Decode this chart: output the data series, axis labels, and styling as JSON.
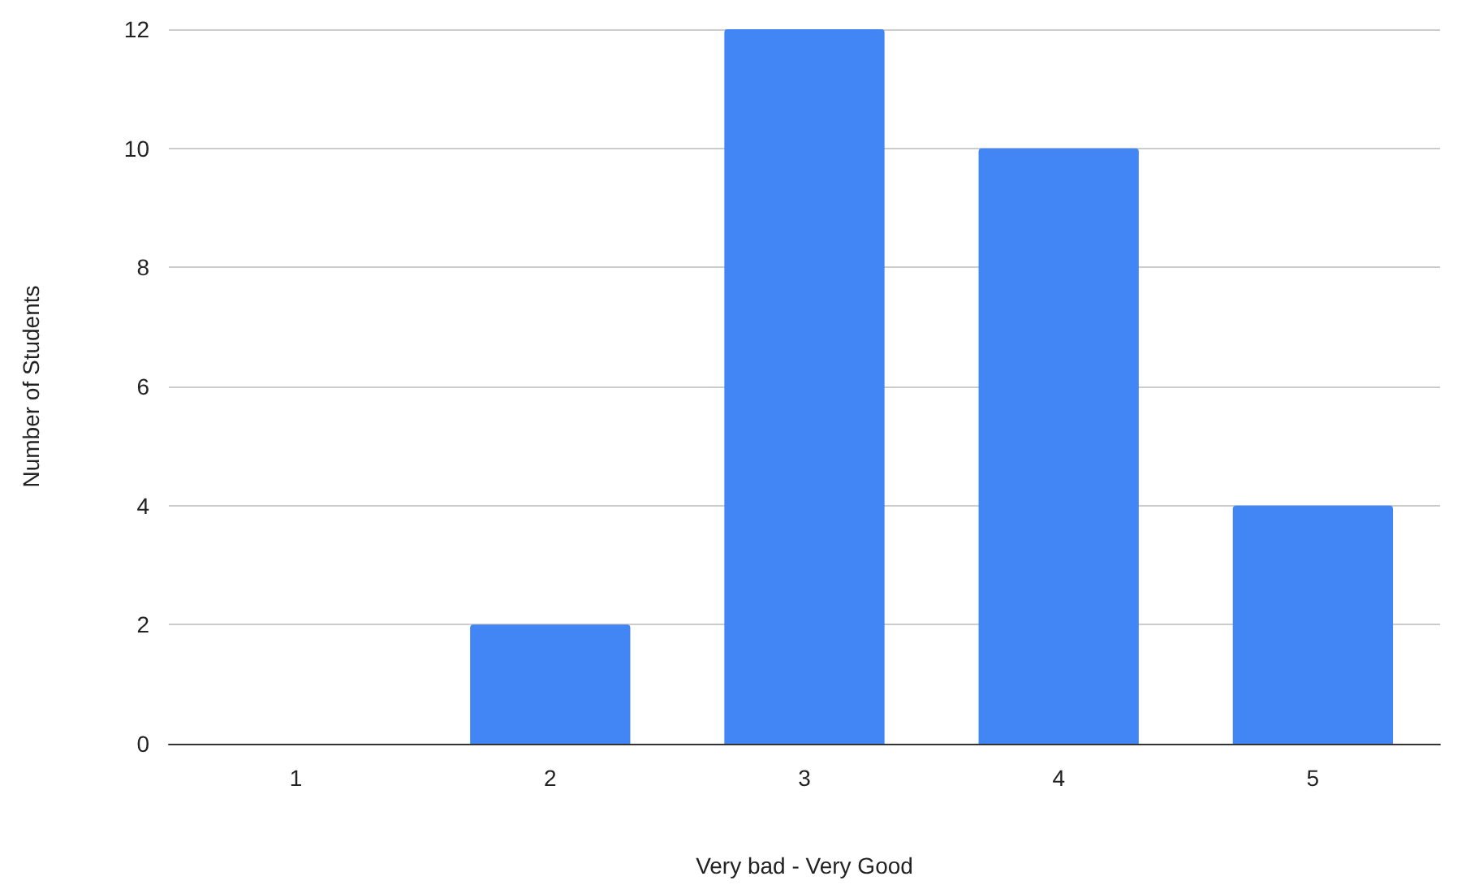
{
  "chart_data": {
    "type": "bar",
    "xlabel": "Very bad - Very Good",
    "ylabel": "Number of Students",
    "categories": [
      "1",
      "2",
      "3",
      "4",
      "5"
    ],
    "values": [
      0,
      2,
      12,
      10,
      4
    ],
    "color": "#4285f4",
    "ylim": [
      0,
      12
    ],
    "yticks": [
      0,
      2,
      4,
      6,
      8,
      10,
      12
    ],
    "grid": "y"
  }
}
